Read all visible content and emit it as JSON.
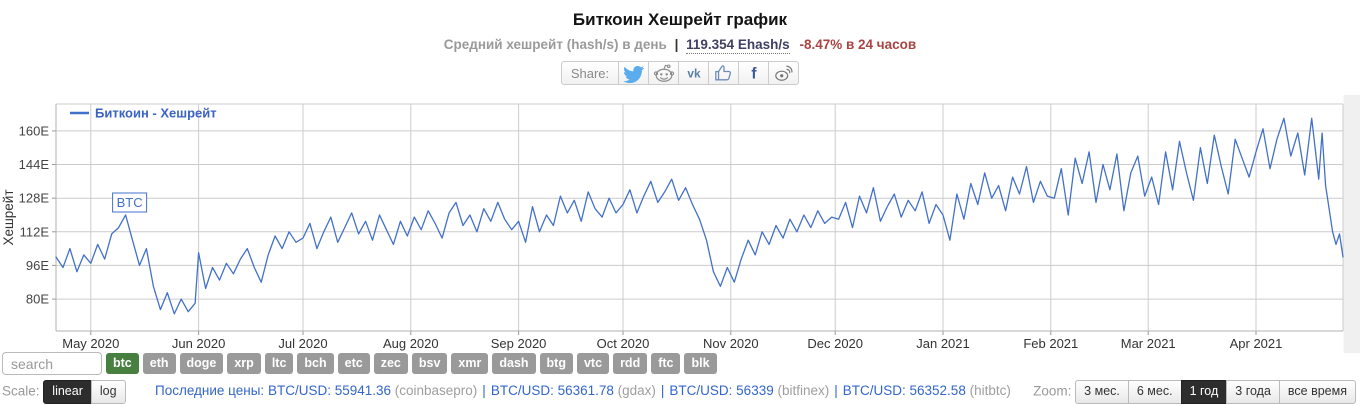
{
  "header": {
    "title": "Биткоин Хешрейт график",
    "subtitle_prefix": "Средний хешрейт (hash/s) в день",
    "subtitle_separator": "|",
    "subtitle_value": "119.354 Ehash/s",
    "subtitle_change": "-8.47% в 24 часов",
    "share": {
      "label": "Share:",
      "icons": [
        {
          "name": "twitter-icon",
          "color": "#5bacec"
        },
        {
          "name": "reddit-icon",
          "color": "#8a8a8a"
        },
        {
          "name": "vk-icon",
          "glyph": "vk",
          "color": "#587ea3"
        },
        {
          "name": "like-icon",
          "color": "#6d8ab8"
        },
        {
          "name": "facebook-icon",
          "glyph": "f",
          "color": "#3b5998"
        },
        {
          "name": "weibo-icon",
          "color": "#777777"
        }
      ]
    }
  },
  "chart_data": {
    "type": "line",
    "title": "Биткоин Хешрейт график",
    "series_name": "Биткоин - Хешрейт",
    "ylabel": "Хешрейт",
    "y_unit": "Ehash/s",
    "ylim": [
      64.8,
      172.8
    ],
    "yticks": [
      {
        "label": "80E",
        "value": 80
      },
      {
        "label": "96E",
        "value": 96
      },
      {
        "label": "112E",
        "value": 112
      },
      {
        "label": "128E",
        "value": 128
      },
      {
        "label": "144E",
        "value": 144
      },
      {
        "label": "160E",
        "value": 160
      }
    ],
    "x_unit": "days from 2020-04-21",
    "x_max": 370,
    "xticks": [
      {
        "label": "May 2020",
        "day": 10
      },
      {
        "label": "Jun 2020",
        "day": 41
      },
      {
        "label": "Jul 2020",
        "day": 71
      },
      {
        "label": "Aug 2020",
        "day": 102
      },
      {
        "label": "Sep 2020",
        "day": 133
      },
      {
        "label": "Oct 2020",
        "day": 163
      },
      {
        "label": "Nov 2020",
        "day": 194
      },
      {
        "label": "Dec 2020",
        "day": 224
      },
      {
        "label": "Jan 2021",
        "day": 255
      },
      {
        "label": "Feb 2021",
        "day": 286
      },
      {
        "label": "Mar 2021",
        "day": 314
      },
      {
        "label": "Apr 2021",
        "day": 345
      }
    ],
    "annotation": {
      "label": "BTC",
      "day": 20,
      "value": 120
    },
    "line_color": "#4371c9",
    "legend_text_color": "#3a63c2",
    "grid": true,
    "legend_position": "top-left",
    "points": [
      [
        0,
        100
      ],
      [
        2,
        95
      ],
      [
        4,
        104
      ],
      [
        6,
        93
      ],
      [
        8,
        101
      ],
      [
        10,
        97
      ],
      [
        12,
        106
      ],
      [
        14,
        99
      ],
      [
        16,
        111
      ],
      [
        18,
        114
      ],
      [
        20,
        120
      ],
      [
        22,
        108
      ],
      [
        24,
        96
      ],
      [
        26,
        104
      ],
      [
        28,
        86
      ],
      [
        30,
        75
      ],
      [
        32,
        83
      ],
      [
        34,
        73
      ],
      [
        36,
        80
      ],
      [
        38,
        74
      ],
      [
        40,
        78
      ],
      [
        41,
        102
      ],
      [
        43,
        85
      ],
      [
        45,
        95
      ],
      [
        47,
        89
      ],
      [
        49,
        97
      ],
      [
        51,
        92
      ],
      [
        53,
        99
      ],
      [
        55,
        104
      ],
      [
        57,
        95
      ],
      [
        59,
        88
      ],
      [
        61,
        101
      ],
      [
        63,
        110
      ],
      [
        65,
        104
      ],
      [
        67,
        112
      ],
      [
        69,
        107
      ],
      [
        71,
        109
      ],
      [
        73,
        116
      ],
      [
        75,
        104
      ],
      [
        77,
        112
      ],
      [
        79,
        119
      ],
      [
        81,
        107
      ],
      [
        83,
        114
      ],
      [
        85,
        121
      ],
      [
        87,
        111
      ],
      [
        89,
        117
      ],
      [
        91,
        108
      ],
      [
        93,
        120
      ],
      [
        95,
        113
      ],
      [
        97,
        106
      ],
      [
        99,
        117
      ],
      [
        101,
        110
      ],
      [
        103,
        119
      ],
      [
        105,
        113
      ],
      [
        107,
        122
      ],
      [
        109,
        116
      ],
      [
        111,
        109
      ],
      [
        113,
        121
      ],
      [
        115,
        126
      ],
      [
        117,
        115
      ],
      [
        119,
        120
      ],
      [
        121,
        112
      ],
      [
        123,
        123
      ],
      [
        125,
        117
      ],
      [
        127,
        126
      ],
      [
        129,
        118
      ],
      [
        131,
        113
      ],
      [
        133,
        117
      ],
      [
        135,
        107
      ],
      [
        137,
        124
      ],
      [
        139,
        112
      ],
      [
        141,
        120
      ],
      [
        143,
        115
      ],
      [
        145,
        129
      ],
      [
        147,
        121
      ],
      [
        149,
        127
      ],
      [
        151,
        117
      ],
      [
        153,
        131
      ],
      [
        155,
        123
      ],
      [
        157,
        119
      ],
      [
        159,
        128
      ],
      [
        161,
        121
      ],
      [
        163,
        125
      ],
      [
        165,
        132
      ],
      [
        167,
        121
      ],
      [
        169,
        129
      ],
      [
        171,
        136
      ],
      [
        173,
        126
      ],
      [
        175,
        131
      ],
      [
        177,
        137
      ],
      [
        179,
        127
      ],
      [
        181,
        133
      ],
      [
        183,
        125
      ],
      [
        185,
        118
      ],
      [
        187,
        108
      ],
      [
        189,
        93
      ],
      [
        191,
        86
      ],
      [
        193,
        95
      ],
      [
        195,
        88
      ],
      [
        197,
        99
      ],
      [
        199,
        108
      ],
      [
        201,
        101
      ],
      [
        203,
        112
      ],
      [
        205,
        106
      ],
      [
        207,
        115
      ],
      [
        209,
        109
      ],
      [
        211,
        118
      ],
      [
        213,
        112
      ],
      [
        215,
        120
      ],
      [
        217,
        114
      ],
      [
        219,
        122
      ],
      [
        221,
        116
      ],
      [
        223,
        119
      ],
      [
        225,
        118
      ],
      [
        227,
        126
      ],
      [
        229,
        114
      ],
      [
        231,
        129
      ],
      [
        233,
        121
      ],
      [
        235,
        133
      ],
      [
        237,
        117
      ],
      [
        239,
        124
      ],
      [
        241,
        130
      ],
      [
        243,
        119
      ],
      [
        245,
        127
      ],
      [
        247,
        122
      ],
      [
        249,
        131
      ],
      [
        251,
        116
      ],
      [
        253,
        125
      ],
      [
        255,
        120
      ],
      [
        257,
        108
      ],
      [
        259,
        130
      ],
      [
        261,
        118
      ],
      [
        263,
        135
      ],
      [
        265,
        125
      ],
      [
        267,
        140
      ],
      [
        269,
        128
      ],
      [
        271,
        134
      ],
      [
        273,
        122
      ],
      [
        275,
        138
      ],
      [
        277,
        130
      ],
      [
        279,
        143
      ],
      [
        281,
        126
      ],
      [
        283,
        136
      ],
      [
        285,
        129
      ],
      [
        287,
        128
      ],
      [
        289,
        142
      ],
      [
        291,
        120
      ],
      [
        293,
        147
      ],
      [
        295,
        135
      ],
      [
        297,
        150
      ],
      [
        299,
        126
      ],
      [
        301,
        144
      ],
      [
        303,
        132
      ],
      [
        305,
        149
      ],
      [
        307,
        122
      ],
      [
        309,
        140
      ],
      [
        311,
        148
      ],
      [
        313,
        129
      ],
      [
        315,
        138
      ],
      [
        317,
        125
      ],
      [
        319,
        150
      ],
      [
        321,
        132
      ],
      [
        323,
        155
      ],
      [
        325,
        140
      ],
      [
        327,
        127
      ],
      [
        329,
        152
      ],
      [
        331,
        135
      ],
      [
        333,
        158
      ],
      [
        335,
        143
      ],
      [
        337,
        130
      ],
      [
        339,
        156
      ],
      [
        341,
        147
      ],
      [
        343,
        138
      ],
      [
        345,
        150
      ],
      [
        347,
        161
      ],
      [
        349,
        142
      ],
      [
        351,
        156
      ],
      [
        353,
        166
      ],
      [
        355,
        148
      ],
      [
        357,
        159
      ],
      [
        359,
        139
      ],
      [
        361,
        166
      ],
      [
        363,
        137
      ],
      [
        364,
        159
      ],
      [
        365,
        134
      ],
      [
        367,
        112
      ],
      [
        368,
        106
      ],
      [
        369,
        111
      ],
      [
        370,
        100
      ]
    ]
  },
  "controls": {
    "search_placeholder": "search",
    "coins": [
      "btc",
      "eth",
      "doge",
      "xrp",
      "ltc",
      "bch",
      "etc",
      "zec",
      "bsv",
      "xmr",
      "dash",
      "btg",
      "vtc",
      "rdd",
      "ftc",
      "blk"
    ],
    "selected_coin": "btc",
    "coin_selected_color": "#467f3f",
    "coin_color": "#9a9a9a",
    "scale_label": "Scale:",
    "scale_options": [
      {
        "label": "linear",
        "selected": true
      },
      {
        "label": "log",
        "selected": false
      }
    ],
    "zoom_label": "Zoom:",
    "zoom_options": [
      {
        "label": "3 мес.",
        "selected": false
      },
      {
        "label": "6 мес.",
        "selected": false
      },
      {
        "label": "1 год",
        "selected": true
      },
      {
        "label": "3 года",
        "selected": false
      },
      {
        "label": "все время",
        "selected": false
      }
    ],
    "prices": {
      "label": "Последние цены:",
      "separator": "|",
      "items": [
        {
          "pair": "BTC/USD",
          "value": "55941.36",
          "exchange": "coinbasepro"
        },
        {
          "pair": "BTC/USD",
          "value": "56361.78",
          "exchange": "gdax"
        },
        {
          "pair": "BTC/USD",
          "value": "56339",
          "exchange": "bitfinex"
        },
        {
          "pair": "BTC/USD",
          "value": "56352.58",
          "exchange": "hitbtc"
        }
      ]
    },
    "link_color": "#3366cc"
  }
}
